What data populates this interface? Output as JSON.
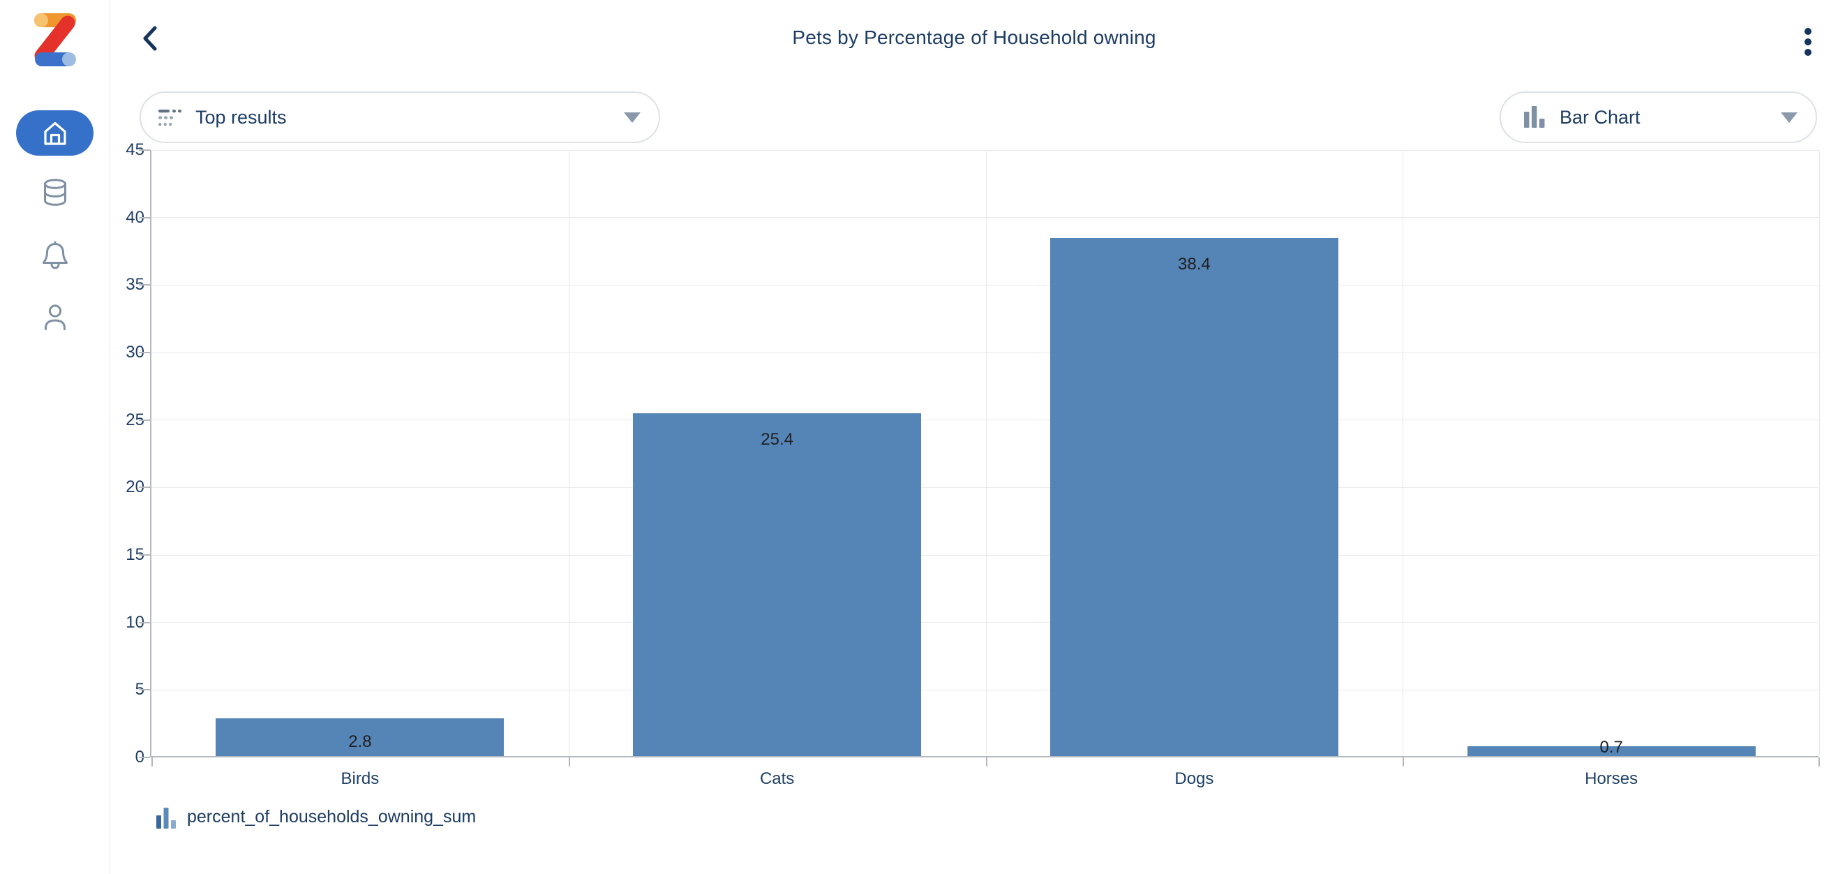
{
  "sidebar": {
    "logo_icon": "zoho-z-logo",
    "nav": [
      {
        "icon": "home-icon",
        "active": true
      },
      {
        "icon": "database-icon",
        "active": false
      },
      {
        "icon": "bell-icon",
        "active": false
      },
      {
        "icon": "user-icon",
        "active": false
      }
    ]
  },
  "header": {
    "back_icon": "chevron-left-icon",
    "title": "Pets by Percentage of Household owning",
    "menu_icon": "kebab-menu-icon"
  },
  "controls": {
    "top_results": {
      "icon": "top-n-filter-icon",
      "label": "Top results",
      "caret_icon": "caret-down-icon"
    },
    "chart_type": {
      "icon": "bar-chart-icon",
      "label": "Bar Chart",
      "caret_icon": "caret-down-icon"
    }
  },
  "chart_data": {
    "type": "bar",
    "title": "Pets by Percentage of Household owning",
    "categories": [
      "Birds",
      "Cats",
      "Dogs",
      "Horses"
    ],
    "series": [
      {
        "name": "percent_of_households_owning_sum",
        "values": [
          2.8,
          25.4,
          38.4,
          0.7
        ]
      }
    ],
    "value_labels_shown": true,
    "ylim": [
      0,
      45
    ],
    "ytick_step": 5,
    "yticks": [
      0,
      5,
      10,
      15,
      20,
      25,
      30,
      35,
      40,
      45
    ],
    "grid": true,
    "bar_color": "#5585b7",
    "legend_position": "bottom"
  },
  "legend": {
    "icon": "mini-bar-chart-icon",
    "label": "percent_of_households_owning_sum"
  },
  "colors": {
    "accent_blue": "#3570c9",
    "bar": "#5585b7",
    "navy_text": "#1c3c63",
    "icon_slate": "#7f90a4",
    "grid_line": "#eaeaea",
    "axis_line": "#b3b9be",
    "logo_orange": "#f0962f",
    "logo_red": "#e4322b",
    "logo_blue": "#3b71ca"
  }
}
